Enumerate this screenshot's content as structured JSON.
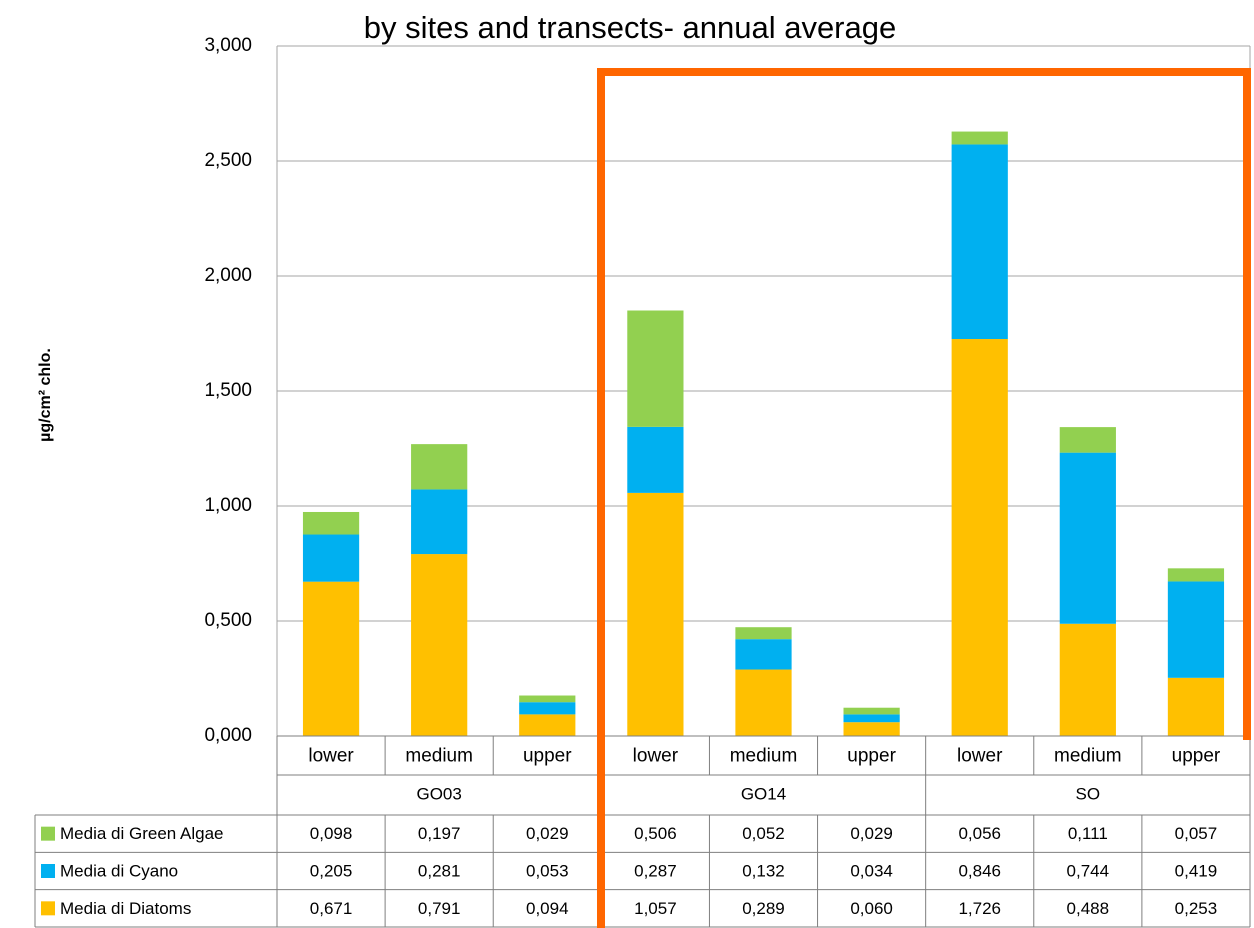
{
  "chart_data": {
    "type": "stacked_bar",
    "title": "by sites and transects- annual average",
    "y_label": "µg/cm² chlo.",
    "categories": [
      "lower",
      "medium",
      "upper",
      "lower",
      "medium",
      "upper",
      "lower",
      "medium",
      "upper"
    ],
    "groups": [
      "GO03",
      "GO14",
      "SO"
    ],
    "series": [
      {
        "name": "Media di Green Algae",
        "color": "#92d050",
        "values": [
          0.098,
          0.197,
          0.029,
          0.506,
          0.052,
          0.029,
          0.056,
          0.111,
          0.057
        ],
        "value_labels": [
          "0,098",
          "0,197",
          "0,029",
          "0,506",
          "0,052",
          "0,029",
          "0,056",
          "0,111",
          "0,057"
        ]
      },
      {
        "name": "Media di Cyano",
        "color": "#00b0f0",
        "values": [
          0.205,
          0.281,
          0.053,
          0.287,
          0.132,
          0.034,
          0.846,
          0.744,
          0.419
        ],
        "value_labels": [
          "0,205",
          "0,281",
          "0,053",
          "0,287",
          "0,132",
          "0,034",
          "0,846",
          "0,744",
          "0,419"
        ]
      },
      {
        "name": "Media di Diatoms",
        "color": "#ffc000",
        "values": [
          0.671,
          0.791,
          0.094,
          1.057,
          0.289,
          0.06,
          1.726,
          0.488,
          0.253
        ],
        "value_labels": [
          "0,671",
          "0,791",
          "0,094",
          "1,057",
          "0,289",
          "0,060",
          "1,726",
          "0,488",
          "0,253"
        ]
      }
    ],
    "ylim": [
      0,
      3
    ],
    "yticks": [
      {
        "value": 0,
        "label": "0,000"
      },
      {
        "value": 0.5,
        "label": "0,500"
      },
      {
        "value": 1,
        "label": "1,000"
      },
      {
        "value": 1.5,
        "label": "1,500"
      },
      {
        "value": 2,
        "label": "2,000"
      },
      {
        "value": 2.5,
        "label": "2,500"
      },
      {
        "value": 3,
        "label": "3,000"
      }
    ],
    "grid": true
  }
}
